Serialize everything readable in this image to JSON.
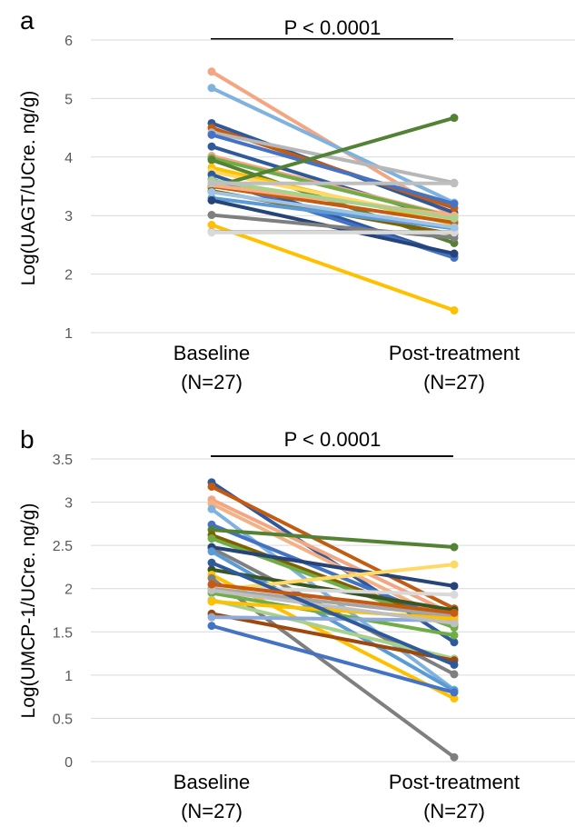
{
  "panels": [
    {
      "letter": "a",
      "pvalue": "P < 0.0001",
      "ylabel": "Log(UAGT/UCre. ng/g)",
      "cat1": [
        "Baseline",
        "(N=27)"
      ],
      "cat2": [
        "Post-treatment",
        "(N=27)"
      ]
    },
    {
      "letter": "b",
      "pvalue": "P < 0.0001",
      "ylabel": "Log(UMCP-1/UCre. ng/g)",
      "cat1": [
        "Baseline",
        "(N=27)"
      ],
      "cat2": [
        "Post-treatment",
        "(N=27)"
      ]
    }
  ],
  "chart_data": [
    {
      "type": "line",
      "panel": "a",
      "categories": [
        "Baseline (N=27)",
        "Post-treatment (N=27)"
      ],
      "ylabel": "Log(UAGT/UCre. ng/g)",
      "ylim": [
        1,
        6
      ],
      "yticks": [
        1,
        2,
        3,
        4,
        5,
        6
      ],
      "annotation": "P < 0.0001",
      "grid": true,
      "series": [
        {
          "color": "#f4a582",
          "values": [
            5.46,
            2.97
          ]
        },
        {
          "color": "#7fb2df",
          "values": [
            5.18,
            3.22
          ]
        },
        {
          "color": "#2e5a9c",
          "values": [
            4.58,
            3.05
          ]
        },
        {
          "color": "#c55a11",
          "values": [
            4.5,
            3.13
          ]
        },
        {
          "color": "#b7b7b7",
          "values": [
            4.42,
            3.56
          ]
        },
        {
          "color": "#4472c4",
          "values": [
            4.38,
            3.2
          ]
        },
        {
          "color": "#2e5a9c",
          "values": [
            4.18,
            2.9
          ]
        },
        {
          "color": "#f4a582",
          "values": [
            4.02,
            2.98
          ]
        },
        {
          "color": "#70ad47",
          "values": [
            3.98,
            2.97
          ]
        },
        {
          "color": "#548235",
          "values": [
            3.95,
            2.53
          ]
        },
        {
          "color": "#ffc000",
          "values": [
            3.82,
            2.85
          ]
        },
        {
          "color": "#ffd966",
          "values": [
            3.75,
            2.92
          ]
        },
        {
          "color": "#2e5a9c",
          "values": [
            3.7,
            2.3
          ]
        },
        {
          "color": "#4472c4",
          "values": [
            3.62,
            2.28
          ]
        },
        {
          "color": "#548235",
          "values": [
            3.48,
            4.67
          ]
        },
        {
          "color": "#c55a11",
          "values": [
            3.5,
            2.88
          ]
        },
        {
          "color": "#f4b183",
          "values": [
            3.52,
            3.0
          ]
        },
        {
          "color": "#806000",
          "values": [
            3.42,
            2.68
          ]
        },
        {
          "color": "#5b9bd5",
          "values": [
            3.3,
            2.78
          ]
        },
        {
          "color": "#264478",
          "values": [
            3.26,
            2.35
          ]
        },
        {
          "color": "#7f7f7f",
          "values": [
            3.01,
            2.62
          ]
        },
        {
          "color": "#ffc000",
          "values": [
            2.84,
            1.38
          ]
        },
        {
          "color": "#a5a5a5",
          "values": [
            2.72,
            2.72
          ]
        },
        {
          "color": "#d9d9d9",
          "values": [
            2.71,
            2.71
          ]
        },
        {
          "color": "#9dc3e6",
          "values": [
            3.4,
            2.8
          ]
        },
        {
          "color": "#a9d18e",
          "values": [
            3.6,
            2.95
          ]
        },
        {
          "color": "#bfbfbf",
          "values": [
            3.55,
            3.55
          ]
        }
      ]
    },
    {
      "type": "line",
      "panel": "b",
      "categories": [
        "Baseline (N=27)",
        "Post-treatment (N=27)"
      ],
      "ylabel": "Log(UMCP-1/UCre. ng/g)",
      "ylim": [
        0,
        3.5
      ],
      "yticks": [
        0,
        0.5,
        1,
        1.5,
        2,
        2.5,
        3,
        3.5
      ],
      "annotation": "P < 0.0001",
      "grid": true,
      "series": [
        {
          "color": "#2e5a9c",
          "values": [
            3.23,
            1.38
          ]
        },
        {
          "color": "#c55a11",
          "values": [
            3.18,
            1.77
          ]
        },
        {
          "color": "#f4a582",
          "values": [
            3.03,
            1.7
          ]
        },
        {
          "color": "#f4b183",
          "values": [
            2.98,
            1.6
          ]
        },
        {
          "color": "#7fb2df",
          "values": [
            2.92,
            0.83
          ]
        },
        {
          "color": "#4472c4",
          "values": [
            2.74,
            1.6
          ]
        },
        {
          "color": "#548235",
          "values": [
            2.68,
            2.48
          ]
        },
        {
          "color": "#806000",
          "values": [
            2.62,
            1.58
          ]
        },
        {
          "color": "#70ad47",
          "values": [
            2.58,
            1.55
          ]
        },
        {
          "color": "#7f7f7f",
          "values": [
            2.47,
            1.01
          ]
        },
        {
          "color": "#264478",
          "values": [
            2.48,
            2.03
          ]
        },
        {
          "color": "#5b9bd5",
          "values": [
            2.43,
            0.82
          ]
        },
        {
          "color": "#375623",
          "values": [
            2.22,
            1.75
          ]
        },
        {
          "color": "#ffc000",
          "values": [
            2.16,
            0.73
          ]
        },
        {
          "color": "#7f7f7f",
          "values": [
            2.12,
            0.05
          ]
        },
        {
          "color": "#d9d9d9",
          "values": [
            2.02,
            1.93
          ]
        },
        {
          "color": "#ffd966",
          "values": [
            1.98,
            2.28
          ]
        },
        {
          "color": "#a5a5a5",
          "values": [
            2.0,
            1.68
          ]
        },
        {
          "color": "#70ad47",
          "values": [
            1.95,
            1.46
          ]
        },
        {
          "color": "#a9d18e",
          "values": [
            1.87,
            1.19
          ]
        },
        {
          "color": "#9e480e",
          "values": [
            1.71,
            1.17
          ]
        },
        {
          "color": "#8eaadb",
          "values": [
            1.67,
            1.63
          ]
        },
        {
          "color": "#4472c4",
          "values": [
            1.57,
            0.8
          ]
        },
        {
          "color": "#ffc000",
          "values": [
            1.85,
            1.65
          ]
        },
        {
          "color": "#bfbfbf",
          "values": [
            1.98,
            1.6
          ]
        },
        {
          "color": "#2e5a9c",
          "values": [
            2.3,
            1.12
          ]
        },
        {
          "color": "#c55a11",
          "values": [
            2.05,
            1.72
          ]
        }
      ]
    }
  ]
}
